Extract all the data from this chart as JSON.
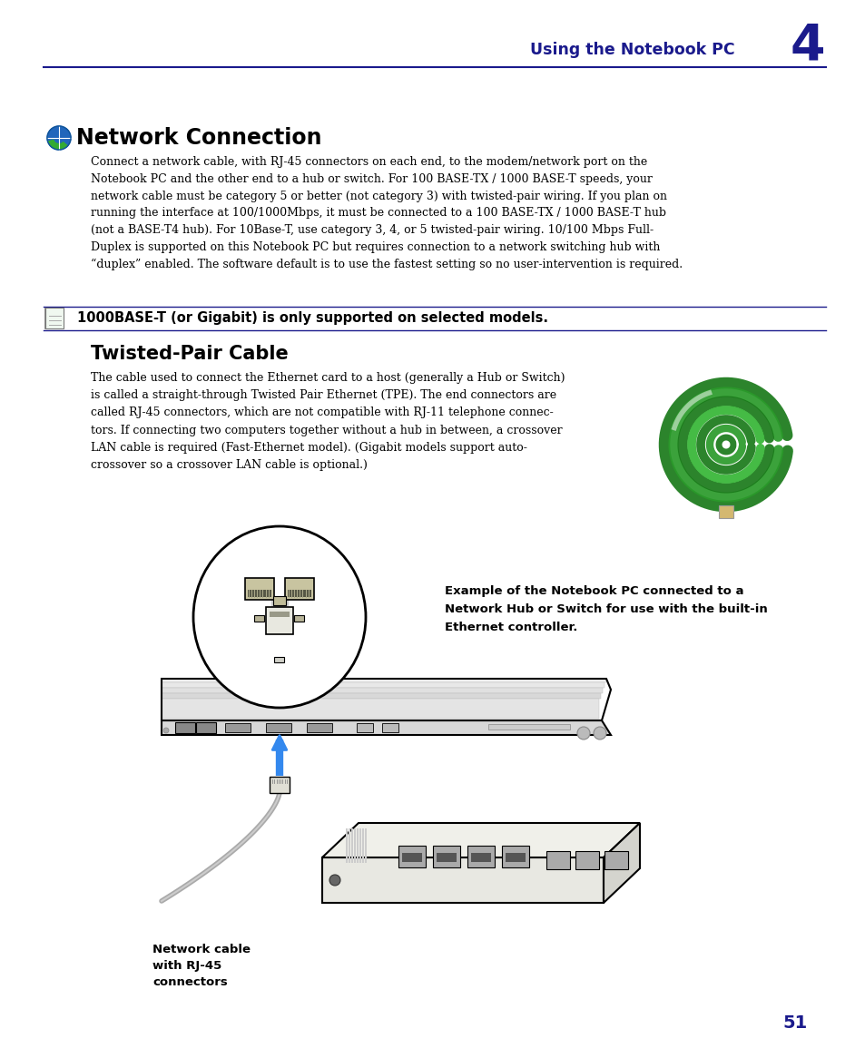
{
  "page_bg": "#ffffff",
  "header_text": "Using the Notebook PC",
  "header_number": "4",
  "dark_blue": "#1a1a8c",
  "text_color": "#000000",
  "section1_title": "Network Connection",
  "section1_body_lines": [
    "Connect a network cable, with RJ-45 connectors on each end, to the modem/network port on the",
    "Notebook PC and the other end to a hub or switch. For 100 BASE-TX / 1000 BASE-T speeds, your",
    "network cable must be category 5 or better (not category 3) with twisted-pair wiring. If you plan on",
    "running the interface at 100/1000Mbps, it must be connected to a 100 BASE-TX / 1000 BASE-T hub",
    "(not a BASE-T4 hub). For 10Base-T, use category 3, 4, or 5 twisted-pair wiring. 10/100 Mbps Full-",
    "Duplex is supported on this Notebook PC but requires connection to a network switching hub with",
    "“duplex” enabled. The software default is to use the fastest setting so no user-intervention is required."
  ],
  "note_text": "1000BASE-T (or Gigabit) is only supported on selected models.",
  "section2_title": "Twisted-Pair Cable",
  "section2_body_lines": [
    "The cable used to connect the Ethernet card to a host (generally a Hub or Switch)",
    "is called a straight-through Twisted Pair Ethernet (TPE). The end connectors are",
    "called RJ-45 connectors, which are not compatible with RJ-11 telephone connec-",
    "tors. If connecting two computers together without a hub in between, a crossover",
    "LAN cable is required (Fast-Ethernet model). (Gigabit models support auto-",
    "crossover so a crossover LAN cable is optional.)"
  ],
  "diagram_caption_lines": [
    "Example of the Notebook PC connected to a",
    "Network Hub or Switch for use with the built-in",
    "Ethernet controller."
  ],
  "label_network_hub": "Network Hub or\nSwitch",
  "label_network_cable": "Network cable\nwith RJ-45\nconnectors",
  "page_number": "51",
  "body_fs": 9.0,
  "title1_fs": 17,
  "title2_fs": 15,
  "note_fs": 10.5,
  "caption_fs": 9.5
}
